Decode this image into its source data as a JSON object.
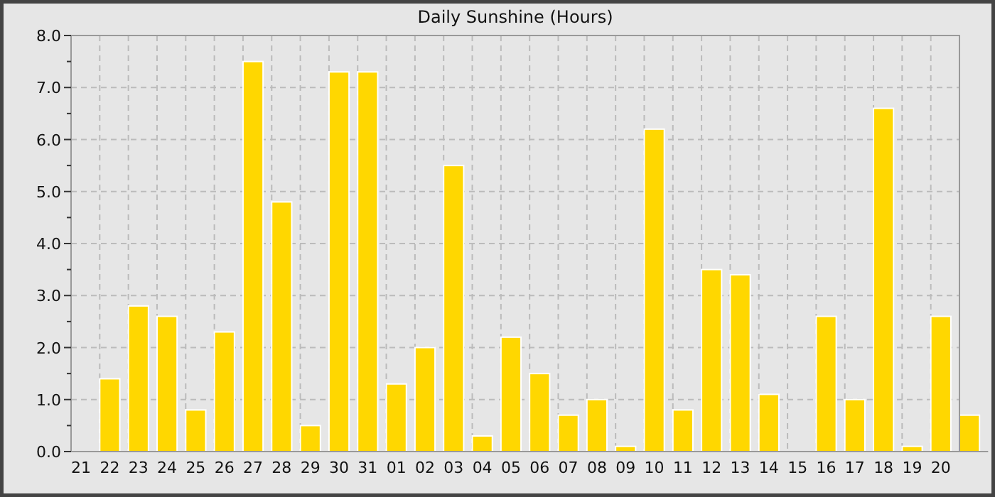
{
  "chart_data": {
    "type": "bar",
    "title": "Daily Sunshine (Hours)",
    "categories": [
      "21",
      "22",
      "23",
      "24",
      "25",
      "26",
      "27",
      "28",
      "29",
      "30",
      "31",
      "01",
      "02",
      "03",
      "04",
      "05",
      "06",
      "07",
      "08",
      "09",
      "10",
      "11",
      "12",
      "13",
      "14",
      "15",
      "16",
      "17",
      "18",
      "19",
      "20",
      null
    ],
    "values": [
      0,
      1.4,
      2.8,
      2.6,
      0.8,
      2.3,
      7.5,
      4.8,
      0.5,
      7.3,
      7.3,
      1.3,
      2.0,
      5.5,
      0.3,
      2.2,
      1.5,
      0.7,
      1.0,
      0.1,
      6.2,
      0.8,
      3.5,
      3.4,
      1.1,
      0,
      2.6,
      1.0,
      6.6,
      0.1,
      2.6,
      0.7
    ],
    "color": "#ffd700",
    "ylim": [
      0,
      8
    ],
    "yticks": [
      {
        "value": 0,
        "label": "0.0"
      },
      {
        "value": 0.5,
        "label": null
      },
      {
        "value": 1,
        "label": "1.0"
      },
      {
        "value": 1.5,
        "label": null
      },
      {
        "value": 2,
        "label": "2.0"
      },
      {
        "value": 2.5,
        "label": null
      },
      {
        "value": 3,
        "label": "3.0"
      },
      {
        "value": 3.5,
        "label": null
      },
      {
        "value": 4,
        "label": "4.0"
      },
      {
        "value": 4.5,
        "label": null
      },
      {
        "value": 5,
        "label": "5.0"
      },
      {
        "value": 5.5,
        "label": null
      },
      {
        "value": 6,
        "label": "6.0"
      },
      {
        "value": 6.5,
        "label": null
      },
      {
        "value": 7,
        "label": "7.0"
      },
      {
        "value": 7.5,
        "label": null
      },
      {
        "value": 8,
        "label": "8.0"
      }
    ],
    "grid": true
  }
}
